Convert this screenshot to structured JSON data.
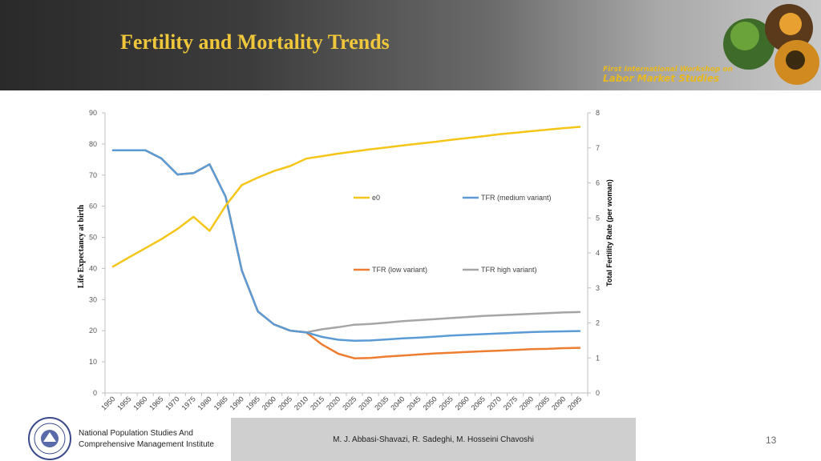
{
  "slide": {
    "title": "Fertility and Mortality Trends",
    "workshop_line1": "First International Workshop on",
    "workshop_line2": "Labor Market Studies",
    "institute_line1": "National Population Studies And",
    "institute_line2": "Comprehensive Management Institute",
    "authors": "M. J. Abbasi-Shavazi, R. Sadeghi, M. Hosseini Chavoshi",
    "page_number": "13"
  },
  "chart_data": {
    "type": "line",
    "x": [
      1950,
      1955,
      1960,
      1965,
      1970,
      1975,
      1980,
      1985,
      1990,
      1995,
      2000,
      2005,
      2010,
      2015,
      2020,
      2025,
      2030,
      2035,
      2040,
      2045,
      2050,
      2055,
      2060,
      2065,
      2070,
      2075,
      2080,
      2085,
      2090,
      2095
    ],
    "xlabels": [
      "1950",
      "1955",
      "1960",
      "1965",
      "1970",
      "1975",
      "1980",
      "1985",
      "1990",
      "1995",
      "2000",
      "2005",
      "2010",
      "2015",
      "2020",
      "2025",
      "2030",
      "2035",
      "2040",
      "2045",
      "2050",
      "2055",
      "2060",
      "2065",
      "2070",
      "2075",
      "2080",
      "2085",
      "2090",
      "2095"
    ],
    "ylabel_left": "Life Expectancy at birth",
    "ylabel_right": "Total Fertility Rate (per woman)",
    "ylim_left": [
      0,
      90
    ],
    "ylim_right": [
      0,
      8
    ],
    "yticks_left": [
      "0",
      "10",
      "20",
      "30",
      "40",
      "50",
      "60",
      "70",
      "80",
      "90"
    ],
    "yticks_right": [
      "0",
      "1",
      "2",
      "3",
      "4",
      "5",
      "6",
      "7",
      "8"
    ],
    "grid": false,
    "series": [
      {
        "name": "e0",
        "axis": "left",
        "color": "#f5c518",
        "values": [
          40.6,
          43.6,
          46.5,
          49.4,
          52.7,
          56.6,
          52.1,
          60.2,
          66.8,
          69.2,
          71.3,
          72.9,
          75.3,
          76.1,
          76.9,
          77.6,
          78.3,
          78.9,
          79.5,
          80.1,
          80.7,
          81.3,
          81.9,
          82.5,
          83.1,
          83.6,
          84.1,
          84.6,
          85.1,
          85.5
        ]
      },
      {
        "name": "TFR (medium variant)",
        "axis": "right",
        "color": "#5b9bd5",
        "values": [
          6.93,
          6.93,
          6.93,
          6.7,
          6.24,
          6.28,
          6.53,
          5.6,
          3.5,
          2.33,
          1.96,
          1.78,
          1.73,
          1.6,
          1.52,
          1.49,
          1.5,
          1.53,
          1.56,
          1.58,
          1.61,
          1.64,
          1.66,
          1.68,
          1.7,
          1.72,
          1.74,
          1.75,
          1.76,
          1.77
        ]
      },
      {
        "name": "TFR (low variant)",
        "axis": "right",
        "color": "#ed7d31",
        "values": [
          6.93,
          6.93,
          6.93,
          6.7,
          6.24,
          6.28,
          6.53,
          5.6,
          3.5,
          2.33,
          1.96,
          1.78,
          1.73,
          1.38,
          1.12,
          0.99,
          1.0,
          1.04,
          1.07,
          1.1,
          1.13,
          1.15,
          1.17,
          1.19,
          1.21,
          1.23,
          1.25,
          1.26,
          1.28,
          1.29
        ]
      },
      {
        "name": "TFR high variant)",
        "axis": "right",
        "color": "#a5a5a5",
        "values": [
          6.93,
          6.93,
          6.93,
          6.7,
          6.24,
          6.28,
          6.53,
          5.6,
          3.5,
          2.33,
          1.96,
          1.78,
          1.73,
          1.82,
          1.88,
          1.95,
          1.97,
          2.01,
          2.05,
          2.08,
          2.11,
          2.14,
          2.17,
          2.2,
          2.22,
          2.24,
          2.26,
          2.28,
          2.3,
          2.31
        ]
      }
    ]
  }
}
